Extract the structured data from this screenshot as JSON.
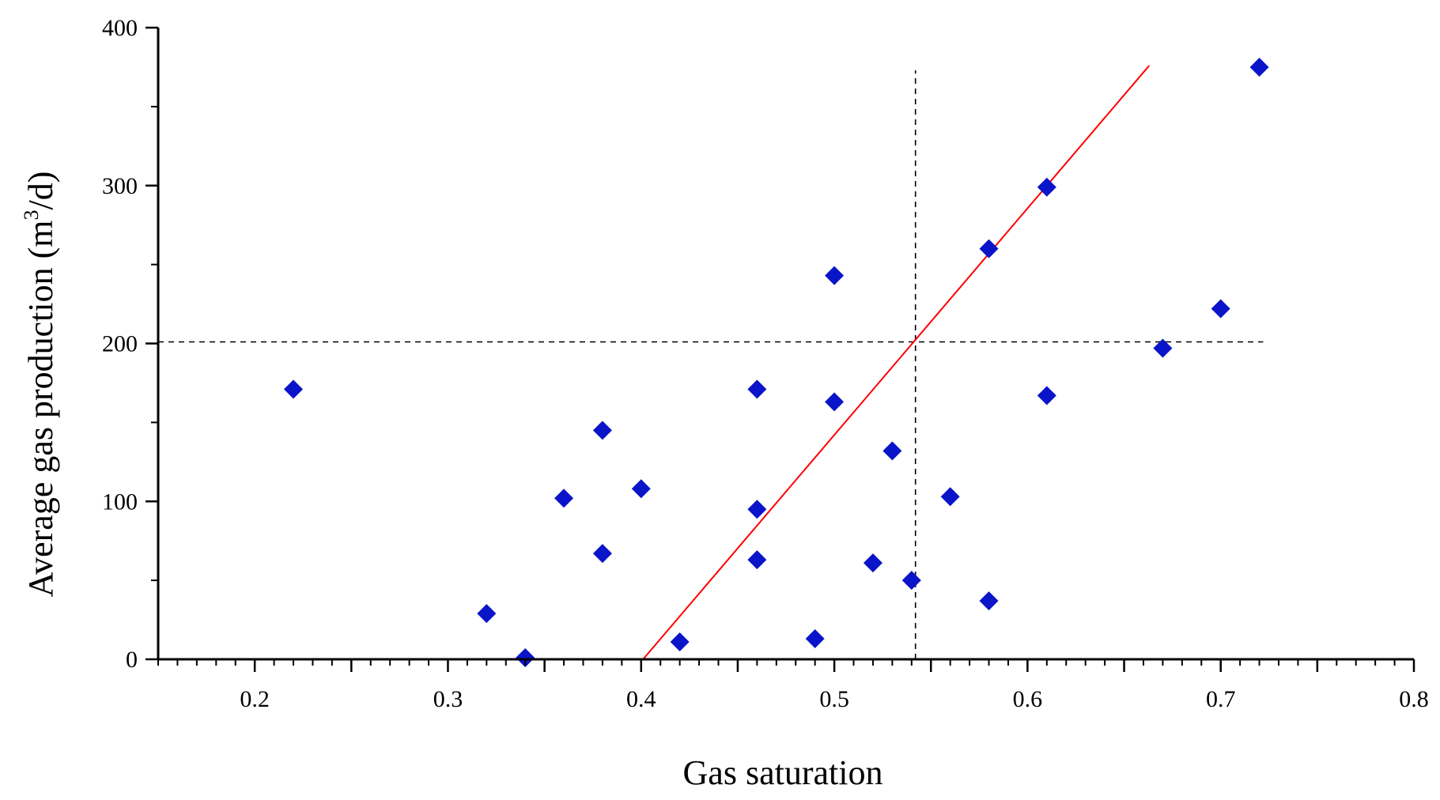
{
  "chart_data": {
    "type": "scatter",
    "title": "",
    "xlabel": "Gas saturation",
    "ylabel_main": "Average gas production (m",
    "ylabel_sup": "3",
    "ylabel_end": "/d)",
    "xlim": [
      0.15,
      0.8
    ],
    "ylim": [
      0,
      400
    ],
    "x_ticks": [
      0.2,
      0.3,
      0.4,
      0.5,
      0.6,
      0.7,
      0.8
    ],
    "x_tick_labels": [
      "0.2",
      "0.3",
      "0.4",
      "0.5",
      "0.6",
      "0.7",
      "0.8"
    ],
    "y_ticks": [
      0,
      100,
      200,
      300,
      400
    ],
    "y_tick_labels": [
      "0",
      "100",
      "200",
      "300",
      "400"
    ],
    "marker": "diamond",
    "marker_color": "#0a14c8",
    "points": [
      {
        "x": 0.22,
        "y": 171
      },
      {
        "x": 0.32,
        "y": 29
      },
      {
        "x": 0.34,
        "y": 1
      },
      {
        "x": 0.36,
        "y": 102
      },
      {
        "x": 0.38,
        "y": 145
      },
      {
        "x": 0.38,
        "y": 67
      },
      {
        "x": 0.4,
        "y": 108
      },
      {
        "x": 0.42,
        "y": 11
      },
      {
        "x": 0.46,
        "y": 171
      },
      {
        "x": 0.46,
        "y": 95
      },
      {
        "x": 0.46,
        "y": 63
      },
      {
        "x": 0.49,
        "y": 13
      },
      {
        "x": 0.5,
        "y": 243
      },
      {
        "x": 0.5,
        "y": 163
      },
      {
        "x": 0.52,
        "y": 61
      },
      {
        "x": 0.53,
        "y": 132
      },
      {
        "x": 0.54,
        "y": 50
      },
      {
        "x": 0.56,
        "y": 103
      },
      {
        "x": 0.58,
        "y": 260
      },
      {
        "x": 0.58,
        "y": 37
      },
      {
        "x": 0.61,
        "y": 299
      },
      {
        "x": 0.61,
        "y": 167
      },
      {
        "x": 0.67,
        "y": 197
      },
      {
        "x": 0.7,
        "y": 222
      },
      {
        "x": 0.72,
        "y": 375
      }
    ],
    "fit_line": {
      "color": "#ff0000",
      "x1": 0.401,
      "y1": 0,
      "x2": 0.663,
      "y2": 376
    },
    "reference_lines": {
      "color": "#000000",
      "horizontal": {
        "y": 201,
        "x_from": 0.15,
        "x_to": 0.722
      },
      "vertical": {
        "x": 0.542,
        "y_from": 0,
        "y_to": 373
      }
    }
  }
}
